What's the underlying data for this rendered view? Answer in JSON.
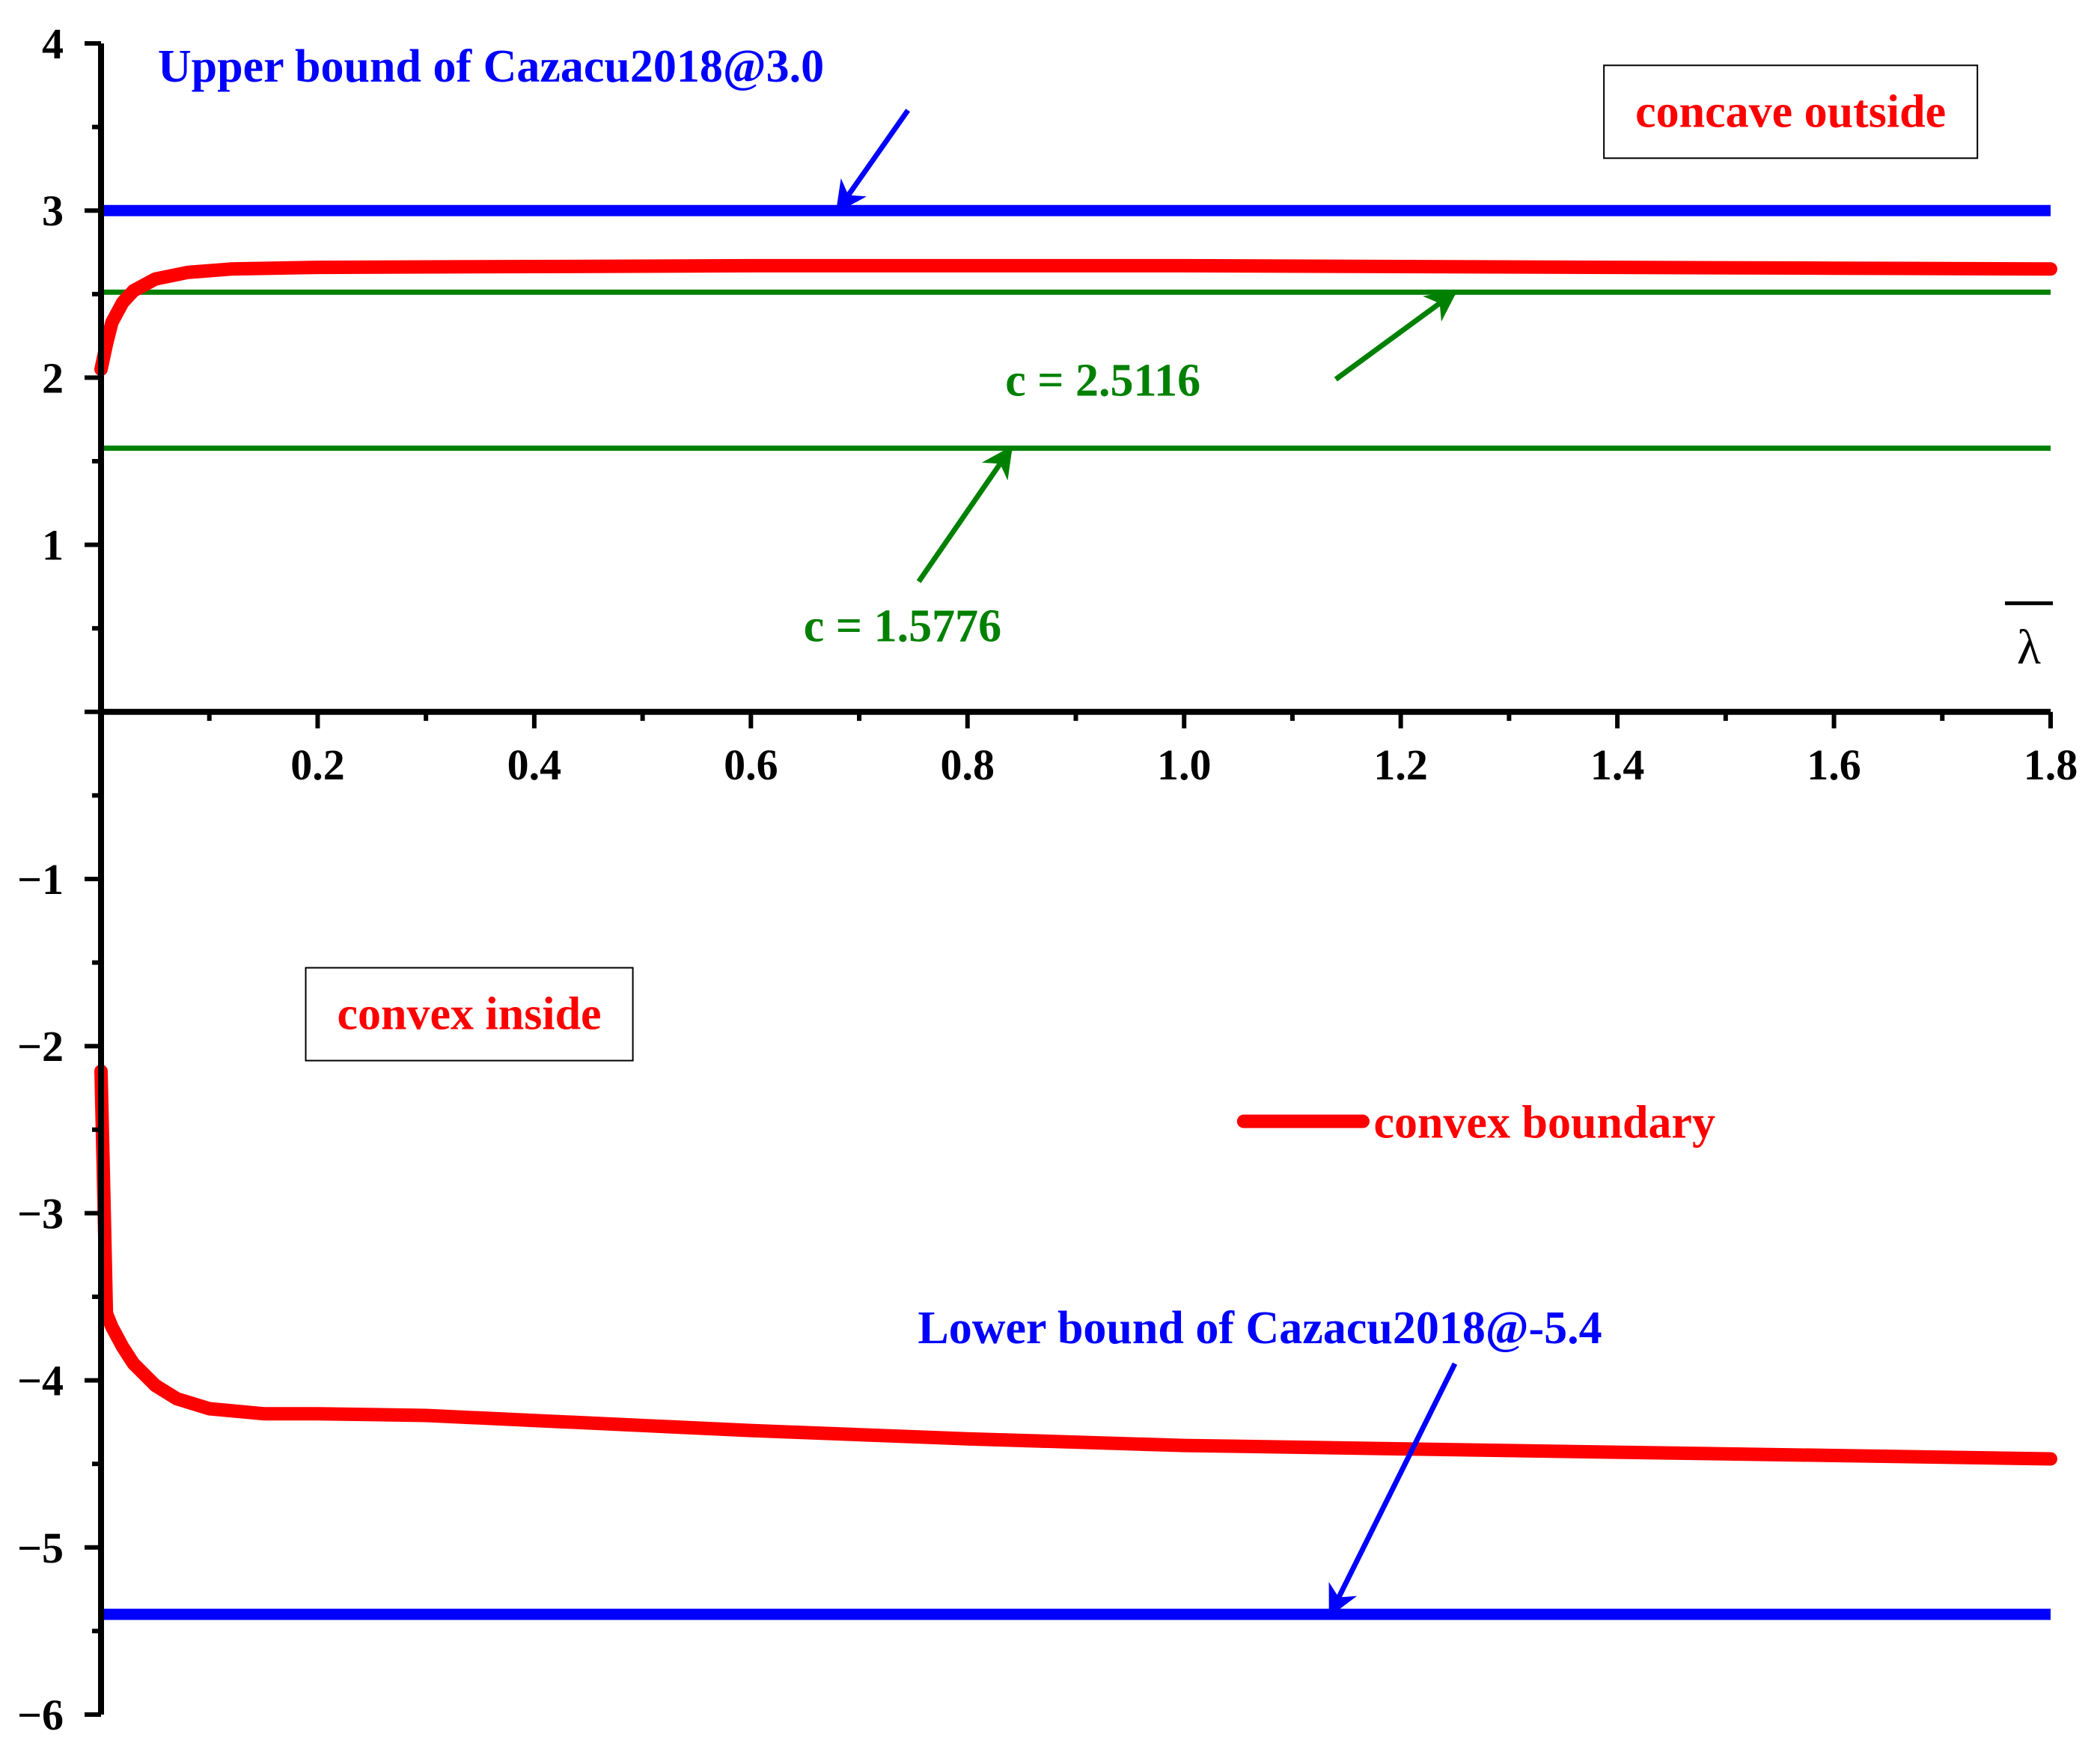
{
  "chart_data": {
    "type": "line",
    "title": "",
    "xlabel": "λ",
    "xlabel_overline": true,
    "ylabel": "",
    "xlim": [
      0,
      1.8
    ],
    "ylim": [
      -6,
      4
    ],
    "x_ticks": [
      {
        "value": 0.2,
        "label": "0.2"
      },
      {
        "value": 0.4,
        "label": "0.4"
      },
      {
        "value": 0.6,
        "label": "0.6"
      },
      {
        "value": 0.8,
        "label": "0.8"
      },
      {
        "value": 1.0,
        "label": "1.0"
      },
      {
        "value": 1.2,
        "label": "1.2"
      },
      {
        "value": 1.4,
        "label": "1.4"
      },
      {
        "value": 1.6,
        "label": "1.6"
      },
      {
        "value": 1.8,
        "label": "1.8"
      }
    ],
    "y_ticks": [
      {
        "value": 4,
        "label": "4"
      },
      {
        "value": 3,
        "label": "3"
      },
      {
        "value": 2,
        "label": "2"
      },
      {
        "value": 1,
        "label": "1"
      },
      {
        "value": -1,
        "label": "−1"
      },
      {
        "value": -2,
        "label": "−2"
      },
      {
        "value": -3,
        "label": "−3"
      },
      {
        "value": -4,
        "label": "−4"
      },
      {
        "value": -5,
        "label": "−5"
      },
      {
        "value": -6,
        "label": "−6"
      }
    ],
    "grid": false,
    "series": [
      {
        "name": "convex boundary",
        "color": "#ff0000",
        "segments": [
          {
            "x": [
              0.0,
              0.005,
              0.01,
              0.02,
              0.03,
              0.05,
              0.08,
              0.12,
              0.2,
              0.4,
              0.6,
              0.8,
              1.0,
              1.2,
              1.4,
              1.6,
              1.8
            ],
            "y": [
              2.05,
              2.2,
              2.33,
              2.45,
              2.52,
              2.59,
              2.63,
              2.65,
              2.66,
              2.665,
              2.67,
              2.67,
              2.67,
              2.665,
              2.66,
              2.655,
              2.65
            ]
          },
          {
            "x": [
              0.0,
              0.003,
              0.005,
              0.01,
              0.02,
              0.03,
              0.05,
              0.07,
              0.1,
              0.15,
              0.2,
              0.3,
              0.4,
              0.6,
              0.8,
              1.0,
              1.2,
              1.4,
              1.6,
              1.8
            ],
            "y": [
              -2.15,
              -3.0,
              -3.6,
              -3.68,
              -3.8,
              -3.9,
              -4.03,
              -4.11,
              -4.17,
              -4.2,
              -4.2,
              -4.21,
              -4.24,
              -4.3,
              -4.35,
              -4.39,
              -4.41,
              -4.43,
              -4.45,
              -4.47
            ]
          }
        ]
      }
    ],
    "reference_lines": [
      {
        "y": 3.0,
        "color": "#0000ff"
      },
      {
        "y": 2.5116,
        "color": "#008000"
      },
      {
        "y": 1.5776,
        "color": "#008000"
      },
      {
        "y": -5.4,
        "color": "#0000ff"
      }
    ],
    "annotations": [
      {
        "text": "Upper bound of Cazacu2018@3.0",
        "color": "#0000ff",
        "x": 0.36,
        "y": 3.87,
        "anchor": "middle",
        "arrow": {
          "from": [
            0.745,
            3.6
          ],
          "to": [
            0.68,
            3.0
          ]
        }
      },
      {
        "text": "c = 2.5116",
        "color": "#008000",
        "x": 0.925,
        "y": 1.99,
        "anchor": "middle",
        "arrow": {
          "from": [
            1.14,
            1.99
          ],
          "to": [
            1.25,
            2.5116
          ]
        }
      },
      {
        "text": "c = 1.5776",
        "color": "#008000",
        "x": 0.74,
        "y": 0.52,
        "anchor": "middle",
        "arrow": {
          "from": [
            0.755,
            0.78
          ],
          "to": [
            0.84,
            1.5776
          ]
        }
      },
      {
        "text": "Lower bound of Cazacu2018@-5.4",
        "color": "#0000ff",
        "x": 1.07,
        "y": -3.68,
        "anchor": "middle",
        "arrow": {
          "from": [
            1.25,
            -3.9
          ],
          "to": [
            1.135,
            -5.4
          ]
        }
      }
    ],
    "region_labels": [
      {
        "text": "concave outside",
        "color": "#ff0000",
        "x": 1.56,
        "y": 3.6
      },
      {
        "text": "convex inside",
        "color": "#ff0000",
        "x": 0.34,
        "y": -1.8
      }
    ],
    "legend": {
      "position": "center-right",
      "entries": [
        {
          "label": "convex boundary",
          "color": "#ff0000"
        }
      ]
    }
  }
}
